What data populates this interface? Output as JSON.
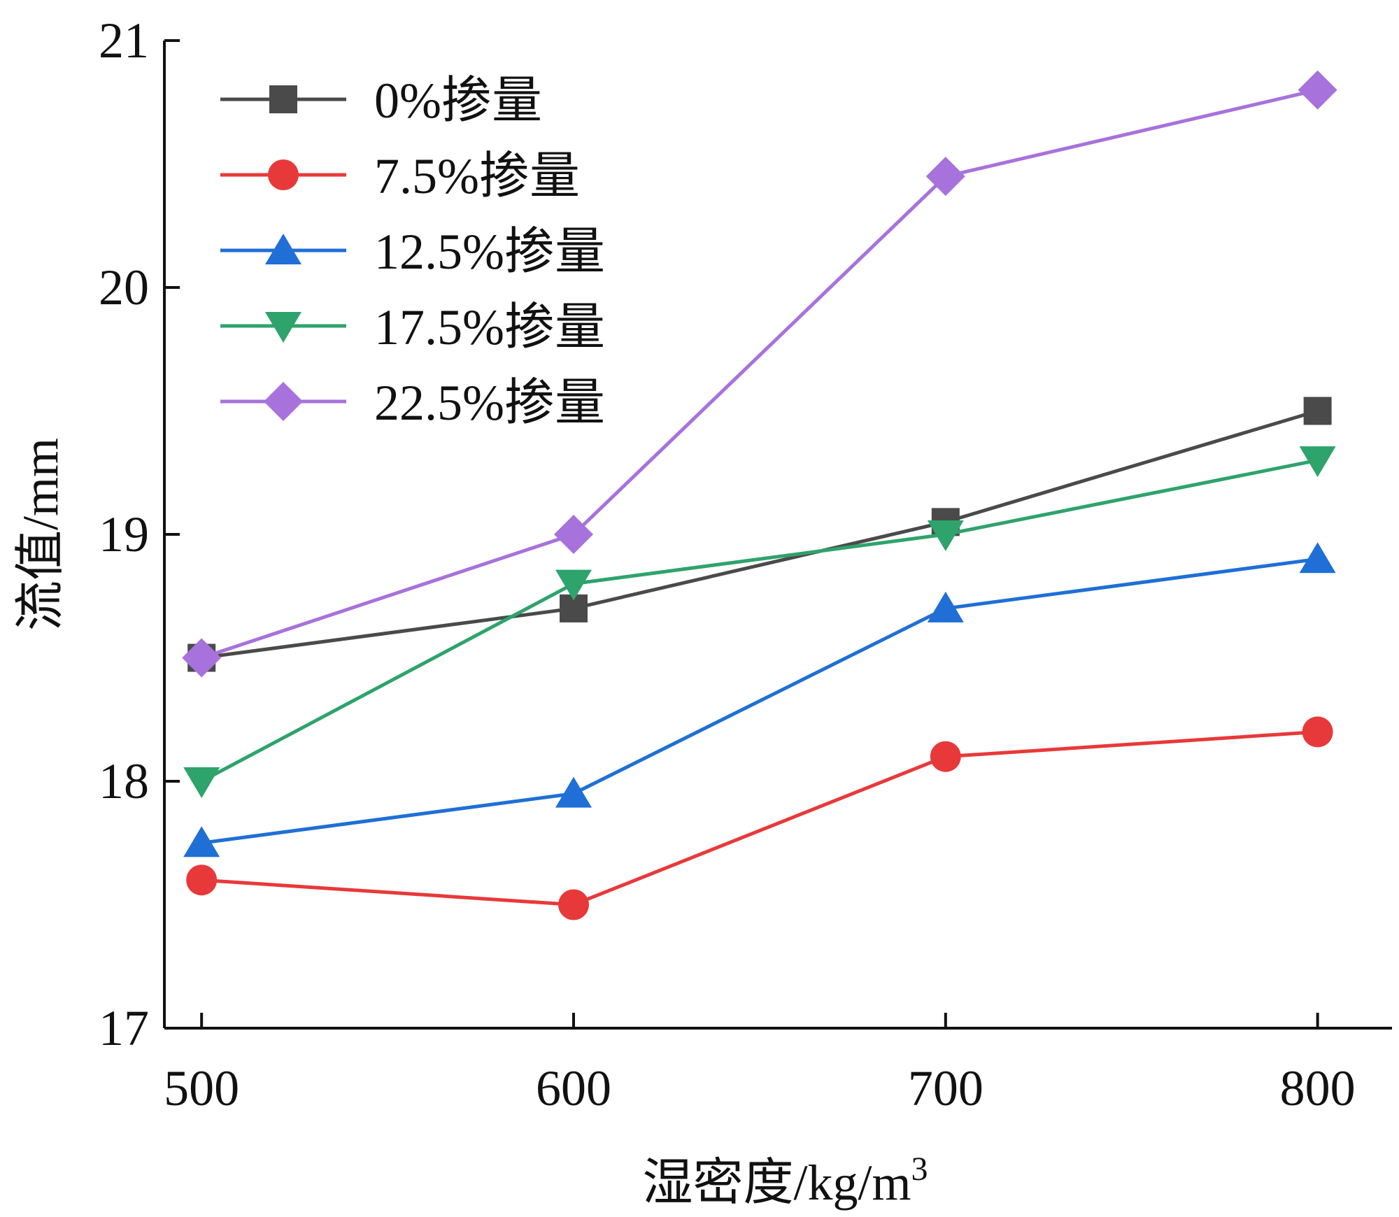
{
  "chart_data": {
    "type": "line",
    "x": [
      500,
      600,
      700,
      800
    ],
    "xticks": [
      "500",
      "600",
      "700",
      "800"
    ],
    "yticks": [
      "17",
      "18",
      "19",
      "20",
      "21"
    ],
    "xlabel": "湿密度/kg/m",
    "xlabel_superscript": "3",
    "ylabel": "流值/mm",
    "xlim": [
      490,
      820
    ],
    "ylim": [
      17,
      21
    ],
    "legend_position": "top-left",
    "series": [
      {
        "name": "0%掺量",
        "values": [
          18.5,
          18.7,
          19.05,
          19.5
        ],
        "color": "#4a4a4a",
        "marker": "square"
      },
      {
        "name": "7.5%掺量",
        "values": [
          17.6,
          17.5,
          18.1,
          18.2
        ],
        "color": "#e8393a",
        "marker": "circle"
      },
      {
        "name": "12.5%掺量",
        "values": [
          17.75,
          17.95,
          18.7,
          18.9
        ],
        "color": "#1f6fd6",
        "marker": "triangle-up"
      },
      {
        "name": "17.5%掺量",
        "values": [
          18.0,
          18.8,
          19.0,
          19.3
        ],
        "color": "#2ea36b",
        "marker": "triangle-down"
      },
      {
        "name": "22.5%掺量",
        "values": [
          18.5,
          19.0,
          20.45,
          20.8
        ],
        "color": "#a772dc",
        "marker": "diamond"
      }
    ]
  }
}
